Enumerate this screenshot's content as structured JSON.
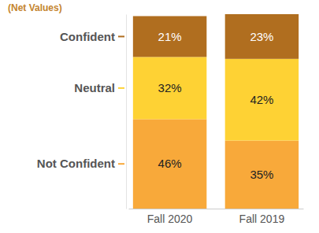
{
  "chart_data": {
    "type": "bar",
    "stacked": true,
    "legend": "left",
    "legend_title": "(Net Values)",
    "data_labels": true,
    "tick_labels": "x",
    "categories": [
      "Fall 2020",
      "Fall 2019"
    ],
    "ylim": [
      0,
      100
    ],
    "series": [
      {
        "name": "Not Confident",
        "color": "#f8a93a",
        "values": [
          46,
          35
        ],
        "value_labels": [
          "46%",
          "35%"
        ]
      },
      {
        "name": "Neutral",
        "color": "#fed234",
        "values": [
          32,
          42
        ],
        "value_labels": [
          "32%",
          "42%"
        ]
      },
      {
        "name": "Confident",
        "color": "#b06e1f",
        "values": [
          21,
          23
        ],
        "value_labels": [
          "21%",
          "23%"
        ]
      }
    ]
  }
}
